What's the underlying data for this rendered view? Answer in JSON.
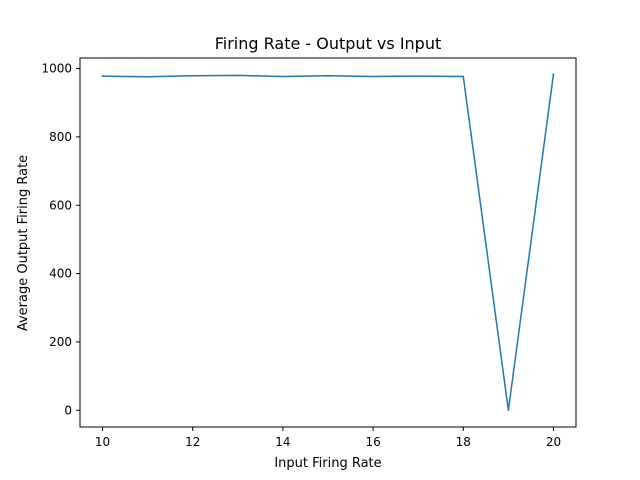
{
  "chart_data": {
    "type": "line",
    "title": "Firing Rate - Output vs Input",
    "xlabel": "Input Firing Rate",
    "ylabel": "Average Output Firing Rate",
    "x": [
      10,
      11,
      12,
      13,
      14,
      15,
      16,
      17,
      18,
      19,
      20
    ],
    "series": [
      {
        "values": [
          978,
          976,
          979,
          980,
          977,
          979,
          977,
          978,
          977,
          0,
          983
        ],
        "color": "#1f77b4"
      }
    ],
    "xlim": [
      9.5,
      20.5
    ],
    "ylim": [
      -49,
      1031
    ],
    "xticks": [
      10,
      12,
      14,
      16,
      18,
      20
    ],
    "yticks": [
      0,
      200,
      400,
      600,
      800,
      1000
    ],
    "grid": false,
    "legend": "none"
  }
}
